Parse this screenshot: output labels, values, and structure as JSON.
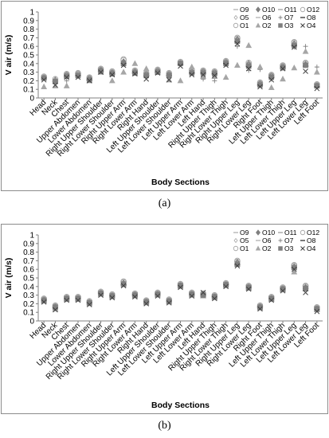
{
  "chart_data": [
    {
      "type": "scatter",
      "panel_label": "(a)",
      "xlabel": "Body Sections",
      "ylabel": "V air (m/s)",
      "ylim": [
        0,
        1
      ],
      "yticks": [
        "0",
        "0.1",
        "0.2",
        "0.3",
        "0.4",
        "0.5",
        "0.6",
        "0.7",
        "0.8",
        "0.9",
        "1"
      ],
      "grid": false,
      "legend_position": "top-right",
      "categories": [
        "Head",
        "Neck",
        "Chest",
        "Upper Abdomen",
        "Lower Abdomen",
        "Right Upper Shoulder",
        "Right Lower Shoulder",
        "Right Upper Arm",
        "Right Lower Arm",
        "Right Hand",
        "Left Upper Shoulder",
        "Left Lower Shoulder",
        "Left Upper Arm",
        "Left Lower Arm",
        "Left Hand",
        "Right Upper Thigh",
        "Right Lower Thigh",
        "Right Upper Leg",
        "Right Lower Leg",
        "Right Foot",
        "Left Upper Thigh",
        "Left Lower Thigh",
        "Left Upper Leg",
        "Left Lower Leg",
        "Left Foot"
      ],
      "series": [
        {
          "name": "O9",
          "marker": "dash-thin",
          "values": [
            0.23,
            0.2,
            0.26,
            0.27,
            0.22,
            0.32,
            0.29,
            0.4,
            0.3,
            0.27,
            0.31,
            0.27,
            0.4,
            0.3,
            0.3,
            0.29,
            0.41,
            0.66,
            0.38,
            0.16,
            0.25,
            0.36,
            0.62,
            0.38,
            0.14
          ]
        },
        {
          "name": "O10",
          "marker": "diamond",
          "values": [
            0.24,
            0.21,
            0.27,
            0.28,
            0.23,
            0.33,
            0.3,
            0.42,
            0.31,
            0.28,
            0.32,
            0.28,
            0.41,
            0.31,
            0.31,
            0.3,
            0.42,
            0.68,
            0.4,
            0.17,
            0.26,
            0.37,
            0.63,
            0.39,
            0.15
          ]
        },
        {
          "name": "O11",
          "marker": "dash-gray",
          "values": [
            0.22,
            0.19,
            0.25,
            0.26,
            0.21,
            0.31,
            0.28,
            0.41,
            0.29,
            0.26,
            0.3,
            0.26,
            0.39,
            0.29,
            0.29,
            0.28,
            0.4,
            0.65,
            0.37,
            0.15,
            0.24,
            0.35,
            0.61,
            0.37,
            0.13
          ]
        },
        {
          "name": "O12",
          "marker": "circle",
          "values": [
            0.25,
            0.22,
            0.28,
            0.29,
            0.24,
            0.34,
            0.31,
            0.45,
            0.32,
            0.29,
            0.33,
            0.29,
            0.42,
            0.33,
            0.32,
            0.31,
            0.43,
            0.7,
            0.41,
            0.18,
            0.27,
            0.38,
            0.65,
            0.41,
            0.16
          ]
        },
        {
          "name": "O5",
          "marker": "diamond-small",
          "values": [
            0.23,
            0.18,
            0.26,
            0.27,
            0.22,
            0.31,
            0.29,
            0.39,
            0.3,
            0.27,
            0.31,
            0.27,
            0.4,
            0.3,
            0.3,
            0.29,
            0.41,
            0.67,
            0.38,
            0.16,
            0.25,
            0.36,
            0.62,
            0.38,
            0.14
          ]
        },
        {
          "name": "O6",
          "marker": "dash-thin",
          "values": [
            0.21,
            0.17,
            0.24,
            0.25,
            0.2,
            0.3,
            0.27,
            0.38,
            0.28,
            0.25,
            0.29,
            0.25,
            0.38,
            0.28,
            0.28,
            0.27,
            0.39,
            0.64,
            0.36,
            0.14,
            0.23,
            0.34,
            0.6,
            0.36,
            0.12
          ]
        },
        {
          "name": "O7",
          "marker": "plus",
          "values": [
            0.24,
            0.18,
            0.2,
            0.25,
            0.21,
            0.32,
            0.29,
            0.4,
            0.3,
            0.26,
            0.3,
            0.26,
            0.39,
            0.29,
            0.22,
            0.2,
            0.39,
            0.6,
            0.32,
            0.33,
            0.22,
            0.36,
            0.59,
            0.6,
            0.36
          ]
        },
        {
          "name": "O8",
          "marker": "dash",
          "values": [
            0.23,
            0.19,
            0.25,
            0.26,
            0.21,
            0.31,
            0.28,
            0.4,
            0.29,
            0.26,
            0.3,
            0.26,
            0.39,
            0.29,
            0.29,
            0.28,
            0.4,
            0.66,
            0.37,
            0.15,
            0.24,
            0.35,
            0.61,
            0.37,
            0.13
          ]
        },
        {
          "name": "O1",
          "marker": "circle",
          "values": [
            0.24,
            0.2,
            0.27,
            0.28,
            0.23,
            0.33,
            0.3,
            0.44,
            0.31,
            0.28,
            0.32,
            0.28,
            0.41,
            0.32,
            0.31,
            0.3,
            0.42,
            0.69,
            0.39,
            0.17,
            0.26,
            0.37,
            0.64,
            0.4,
            0.15
          ]
        },
        {
          "name": "O2",
          "marker": "triangle",
          "values": [
            0.13,
            0.14,
            0.14,
            0.28,
            0.2,
            0.3,
            0.2,
            0.3,
            0.4,
            0.34,
            0.3,
            0.21,
            0.2,
            0.36,
            0.25,
            0.25,
            0.24,
            0.38,
            0.61,
            0.36,
            0.12,
            0.22,
            0.35,
            0.54,
            0.3
          ]
        },
        {
          "name": "O3",
          "marker": "square",
          "values": [
            0.23,
            0.19,
            0.25,
            0.26,
            0.21,
            0.31,
            0.28,
            0.4,
            0.29,
            0.26,
            0.3,
            0.26,
            0.4,
            0.29,
            0.29,
            0.28,
            0.4,
            0.66,
            0.37,
            0.15,
            0.24,
            0.35,
            0.61,
            0.38,
            0.14
          ]
        },
        {
          "name": "O4",
          "marker": "x",
          "values": [
            0.21,
            0.15,
            0.24,
            0.24,
            0.2,
            0.3,
            0.27,
            0.38,
            0.28,
            0.22,
            0.29,
            0.21,
            0.37,
            0.27,
            0.27,
            0.26,
            0.38,
            0.63,
            0.34,
            0.13,
            0.21,
            0.34,
            0.59,
            0.31,
            0.11
          ]
        }
      ]
    },
    {
      "type": "scatter",
      "panel_label": "(b)",
      "xlabel": "Body Sections",
      "ylabel": "V air (m/s)",
      "ylim": [
        0,
        1
      ],
      "yticks": [
        "0",
        "0.1",
        "0.2",
        "0.3",
        "0.4",
        "0.5",
        "0.6",
        "0.7",
        "0.8",
        "0.9",
        "1"
      ],
      "grid": false,
      "legend_position": "top-right",
      "categories": [
        "Head",
        "Neck",
        "Chest",
        "Upper Abdomen",
        "Lower Abdomen",
        "Right Upper Shoulder",
        "Right Lower Shoulder",
        "Right Upper Arm",
        "Right Lower Arm",
        "Right Hand",
        "Left Upper Shoulder",
        "Left Lower Shoulder",
        "Left Upper Arm",
        "Left Lower Arm",
        "Left Hand",
        "Right Upper Thigh",
        "Right Lower Thigh",
        "Right Upper Leg",
        "Right Lower Leg",
        "Right Foot",
        "Left Upper Thigh",
        "Left Lower Thigh",
        "Left Upper Leg",
        "Left Lower Leg",
        "Left Foot"
      ],
      "series": [
        {
          "name": "O9",
          "marker": "dash-thin",
          "values": [
            0.24,
            0.16,
            0.26,
            0.26,
            0.21,
            0.32,
            0.29,
            0.43,
            0.3,
            0.22,
            0.31,
            0.23,
            0.41,
            0.31,
            0.3,
            0.28,
            0.42,
            0.66,
            0.39,
            0.16,
            0.26,
            0.37,
            0.62,
            0.38,
            0.14
          ]
        },
        {
          "name": "O10",
          "marker": "diamond",
          "values": [
            0.25,
            0.17,
            0.27,
            0.27,
            0.22,
            0.33,
            0.3,
            0.44,
            0.31,
            0.23,
            0.32,
            0.24,
            0.42,
            0.32,
            0.31,
            0.29,
            0.43,
            0.68,
            0.4,
            0.17,
            0.27,
            0.38,
            0.63,
            0.39,
            0.15
          ]
        },
        {
          "name": "O11",
          "marker": "dash-gray",
          "values": [
            0.23,
            0.15,
            0.25,
            0.25,
            0.2,
            0.31,
            0.28,
            0.42,
            0.29,
            0.21,
            0.3,
            0.22,
            0.4,
            0.3,
            0.29,
            0.27,
            0.41,
            0.65,
            0.38,
            0.15,
            0.25,
            0.36,
            0.61,
            0.37,
            0.13
          ]
        },
        {
          "name": "O12",
          "marker": "circle",
          "values": [
            0.26,
            0.18,
            0.28,
            0.28,
            0.23,
            0.34,
            0.31,
            0.46,
            0.32,
            0.24,
            0.33,
            0.25,
            0.43,
            0.33,
            0.32,
            0.3,
            0.44,
            0.7,
            0.41,
            0.18,
            0.28,
            0.39,
            0.65,
            0.41,
            0.16
          ]
        },
        {
          "name": "O5",
          "marker": "diamond-small",
          "values": [
            0.24,
            0.15,
            0.26,
            0.26,
            0.21,
            0.32,
            0.29,
            0.43,
            0.3,
            0.22,
            0.31,
            0.23,
            0.41,
            0.3,
            0.3,
            0.28,
            0.42,
            0.67,
            0.39,
            0.16,
            0.26,
            0.37,
            0.62,
            0.38,
            0.14
          ]
        },
        {
          "name": "O6",
          "marker": "dash-thin",
          "values": [
            0.22,
            0.14,
            0.24,
            0.24,
            0.19,
            0.3,
            0.27,
            0.41,
            0.28,
            0.2,
            0.29,
            0.21,
            0.39,
            0.29,
            0.28,
            0.26,
            0.4,
            0.64,
            0.37,
            0.14,
            0.24,
            0.35,
            0.6,
            0.36,
            0.12
          ]
        },
        {
          "name": "O7",
          "marker": "plus",
          "values": [
            0.24,
            0.16,
            0.26,
            0.26,
            0.21,
            0.32,
            0.29,
            0.43,
            0.3,
            0.22,
            0.31,
            0.23,
            0.41,
            0.31,
            0.3,
            0.28,
            0.42,
            0.66,
            0.39,
            0.16,
            0.26,
            0.37,
            0.62,
            0.38,
            0.14
          ]
        },
        {
          "name": "O8",
          "marker": "dash",
          "values": [
            0.24,
            0.16,
            0.26,
            0.26,
            0.21,
            0.32,
            0.29,
            0.42,
            0.3,
            0.22,
            0.31,
            0.23,
            0.41,
            0.31,
            0.3,
            0.28,
            0.42,
            0.66,
            0.39,
            0.16,
            0.26,
            0.37,
            0.62,
            0.38,
            0.14
          ]
        },
        {
          "name": "O1",
          "marker": "circle",
          "values": [
            0.25,
            0.17,
            0.27,
            0.27,
            0.22,
            0.33,
            0.3,
            0.45,
            0.31,
            0.23,
            0.32,
            0.24,
            0.42,
            0.32,
            0.31,
            0.29,
            0.43,
            0.69,
            0.4,
            0.17,
            0.27,
            0.38,
            0.64,
            0.4,
            0.15
          ]
        },
        {
          "name": "O2",
          "marker": "triangle",
          "values": [
            0.23,
            0.14,
            0.25,
            0.25,
            0.2,
            0.31,
            0.28,
            0.42,
            0.29,
            0.21,
            0.3,
            0.22,
            0.4,
            0.3,
            0.29,
            0.27,
            0.41,
            0.66,
            0.38,
            0.15,
            0.25,
            0.36,
            0.57,
            0.37,
            0.13
          ]
        },
        {
          "name": "O3",
          "marker": "square",
          "values": [
            0.24,
            0.16,
            0.26,
            0.26,
            0.21,
            0.32,
            0.29,
            0.43,
            0.3,
            0.22,
            0.31,
            0.23,
            0.41,
            0.31,
            0.3,
            0.28,
            0.42,
            0.66,
            0.39,
            0.16,
            0.26,
            0.37,
            0.62,
            0.38,
            0.14
          ]
        },
        {
          "name": "O4",
          "marker": "x",
          "values": [
            0.22,
            0.13,
            0.24,
            0.24,
            0.19,
            0.3,
            0.27,
            0.41,
            0.28,
            0.2,
            0.29,
            0.21,
            0.39,
            0.29,
            0.33,
            0.26,
            0.4,
            0.64,
            0.37,
            0.14,
            0.24,
            0.35,
            0.6,
            0.33,
            0.11
          ]
        }
      ]
    }
  ],
  "colors": {
    "marker_dark": "#404040",
    "marker_mid": "#7f7f7f",
    "marker_light": "#a6a6a6",
    "axis": "#808080",
    "panel_border": "#8c8c8c"
  }
}
